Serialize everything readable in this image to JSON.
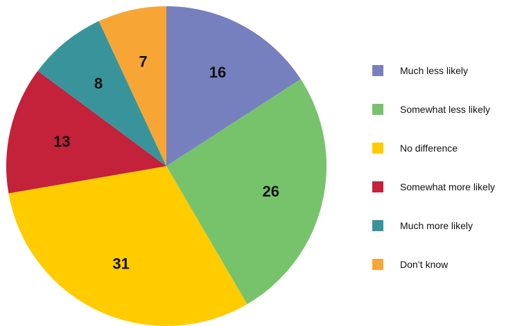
{
  "chart_data": {
    "type": "pie",
    "title": "",
    "start_angle_deg": 0,
    "direction": "clockwise",
    "legend_position": "right",
    "slices": [
      {
        "label": "Much less likely",
        "value": 16,
        "color": "#7780be"
      },
      {
        "label": "Somewhat less likely",
        "value": 26,
        "color": "#77c36c"
      },
      {
        "label": "No difference",
        "value": 31,
        "color": "#ffcc00"
      },
      {
        "label": "Somewhat more likely",
        "value": 13,
        "color": "#c4213a"
      },
      {
        "label": "Much more likely",
        "value": 8,
        "color": "#38949a"
      },
      {
        "label": "Don’t know",
        "value": 7,
        "color": "#f7a636"
      }
    ]
  }
}
